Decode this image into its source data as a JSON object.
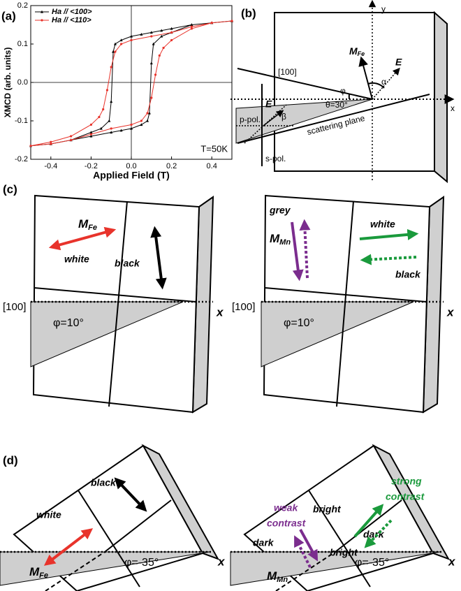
{
  "chart_data": {
    "type": "line",
    "panel_label": "(a)",
    "xlabel": "Applied Field (T)",
    "ylabel": "XMCD (arb. units)",
    "annotation": "T=50K",
    "xlim": [
      -0.5,
      0.5
    ],
    "ylim": [
      -0.2,
      0.2
    ],
    "xticks": [
      -0.4,
      -0.2,
      {
        "value": 0,
        "label": "0.0"
      },
      0.2,
      0.4
    ],
    "yticks": [
      -0.2,
      -0.1,
      {
        "value": 0,
        "label": "0.0"
      },
      0.1,
      0.2
    ],
    "zero_lines": true,
    "legend": "upper left",
    "series": [
      {
        "name": "Ha // <100>",
        "color": "#000000",
        "marker": "triangle",
        "x": [
          0.5,
          0.4,
          0.3,
          0.2,
          0.15,
          0.1,
          0.05,
          0,
          -0.05,
          -0.08,
          -0.09,
          -0.1,
          -0.11,
          -0.15,
          -0.2,
          -0.3,
          -0.4,
          -0.5,
          -0.4,
          -0.3,
          -0.2,
          -0.1,
          -0.05,
          0,
          0.05,
          0.08,
          0.09,
          0.1,
          0.11,
          0.15,
          0.2,
          0.3,
          0.4,
          0.5
        ],
        "values": [
          0.16,
          0.155,
          0.15,
          0.14,
          0.135,
          0.13,
          0.125,
          0.12,
          0.11,
          0.1,
          0.08,
          -0.05,
          -0.1,
          -0.12,
          -0.13,
          -0.15,
          -0.16,
          -0.165,
          -0.16,
          -0.15,
          -0.14,
          -0.13,
          -0.125,
          -0.12,
          -0.11,
          -0.1,
          -0.08,
          0.05,
          0.1,
          0.12,
          0.13,
          0.15,
          0.155,
          0.16
        ]
      },
      {
        "name": "Ha // <110>",
        "color": "#e8332b",
        "marker": "circle",
        "x": [
          0.5,
          0.4,
          0.3,
          0.2,
          0.1,
          0,
          -0.05,
          -0.08,
          -0.1,
          -0.12,
          -0.14,
          -0.16,
          -0.2,
          -0.3,
          -0.4,
          -0.5,
          -0.4,
          -0.3,
          -0.2,
          -0.1,
          0,
          0.05,
          0.08,
          0.1,
          0.12,
          0.14,
          0.16,
          0.2,
          0.3,
          0.4,
          0.5
        ],
        "values": [
          0.16,
          0.155,
          0.145,
          0.13,
          0.12,
          0.11,
          0.1,
          0.08,
          0.04,
          -0.02,
          -0.07,
          -0.09,
          -0.11,
          -0.14,
          -0.155,
          -0.165,
          -0.16,
          -0.15,
          -0.135,
          -0.12,
          -0.11,
          -0.1,
          -0.08,
          -0.04,
          0.02,
          0.07,
          0.09,
          0.11,
          0.14,
          0.155,
          0.16
        ]
      }
    ]
  },
  "panels": {
    "b": {
      "label": "(b)",
      "y_axis": "y",
      "x_axis": "x",
      "direction": "[100]",
      "m": {
        "main": "M",
        "sub": "Fe"
      },
      "e_field": "E",
      "alpha": "α",
      "phi": "φ",
      "theta": "θ=30°",
      "e_small": "E",
      "beta": "β",
      "p_pol": "p-pol.",
      "s_pol": "s-pol.",
      "plane": "scattering plane"
    },
    "c": {
      "label": "(c)",
      "left": {
        "m": {
          "main": "M",
          "sub": "Fe"
        },
        "white": "white",
        "black": "black",
        "direction": "[100]",
        "angle": "φ=10°",
        "x_axis": "x"
      },
      "right": {
        "grey": "grey",
        "m": {
          "main": "M",
          "sub": "Mn"
        },
        "white": "white",
        "black": "black",
        "direction": "[100]",
        "angle": "φ=10°",
        "x_axis": "x"
      }
    },
    "d": {
      "label": "(d)",
      "left": {
        "black": "black",
        "white": "white",
        "m": {
          "main": "M",
          "sub": "Fe"
        },
        "angle": "φ=-35°",
        "x_axis": "x"
      },
      "right": {
        "strong": [
          "strong",
          "contrast"
        ],
        "weak": [
          "weak",
          "contrast"
        ],
        "bright_1": "bright",
        "dark_1": "dark",
        "dark_2": "dark",
        "bright_2": "bright",
        "m": {
          "main": "M",
          "sub": "Mn"
        },
        "angle": "φ=-35°",
        "x_axis": "x"
      }
    }
  }
}
